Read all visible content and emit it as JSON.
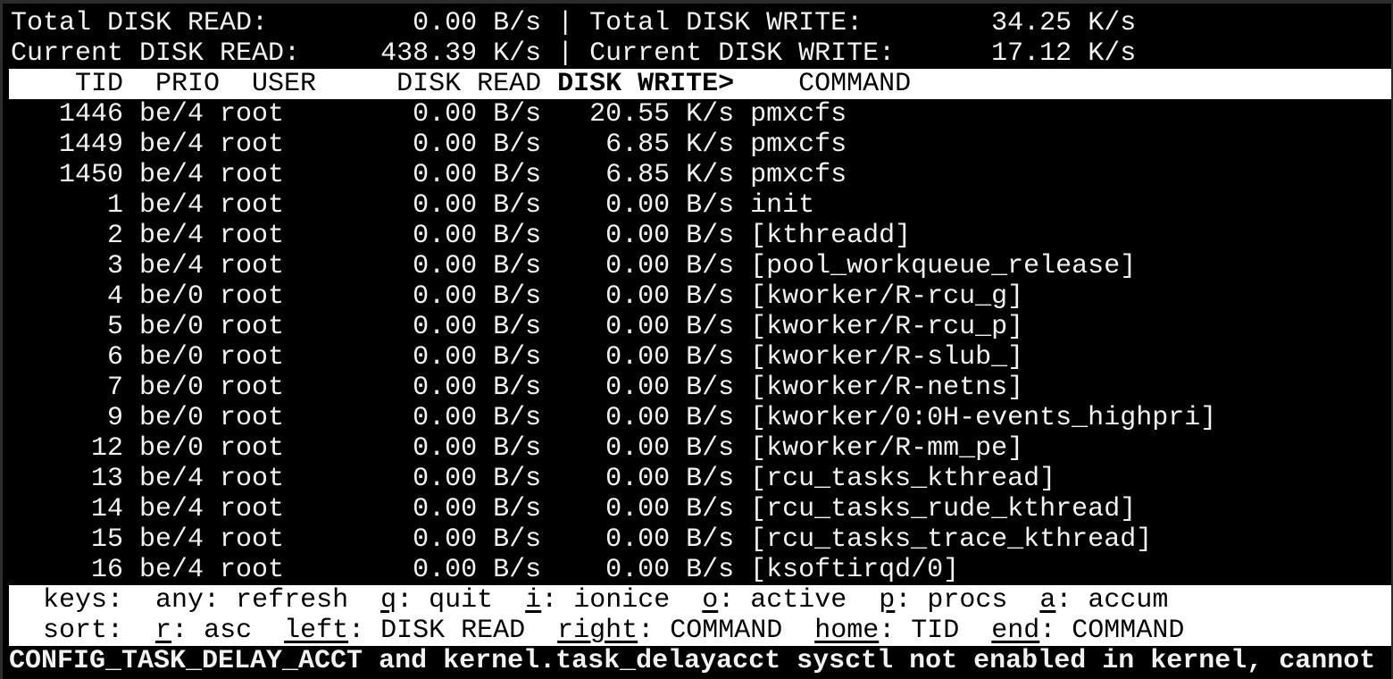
{
  "summary": {
    "total_read_label": "Total DISK READ:",
    "total_read": "0.00 B/s",
    "total_write_label": "Total DISK WRITE:",
    "total_write": "34.25 K/s",
    "current_read_label": "Current DISK READ:",
    "current_read": "438.39 K/s",
    "current_write_label": "Current DISK WRITE:",
    "current_write": "17.12 K/s",
    "separator": "|"
  },
  "columns": {
    "tid": "TID",
    "prio": "PRIO",
    "user": "USER",
    "disk_read": "DISK READ",
    "disk_write": "DISK WRITE>",
    "command": "COMMAND"
  },
  "rows": [
    {
      "tid": "1446",
      "prio": "be/4",
      "user": "root",
      "read": "0.00 B/s",
      "write": "20.55 K/s",
      "command": "pmxcfs"
    },
    {
      "tid": "1449",
      "prio": "be/4",
      "user": "root",
      "read": "0.00 B/s",
      "write": "6.85 K/s",
      "command": "pmxcfs"
    },
    {
      "tid": "1450",
      "prio": "be/4",
      "user": "root",
      "read": "0.00 B/s",
      "write": "6.85 K/s",
      "command": "pmxcfs"
    },
    {
      "tid": "1",
      "prio": "be/4",
      "user": "root",
      "read": "0.00 B/s",
      "write": "0.00 B/s",
      "command": "init"
    },
    {
      "tid": "2",
      "prio": "be/4",
      "user": "root",
      "read": "0.00 B/s",
      "write": "0.00 B/s",
      "command": "[kthreadd]"
    },
    {
      "tid": "3",
      "prio": "be/4",
      "user": "root",
      "read": "0.00 B/s",
      "write": "0.00 B/s",
      "command": "[pool_workqueue_release]"
    },
    {
      "tid": "4",
      "prio": "be/0",
      "user": "root",
      "read": "0.00 B/s",
      "write": "0.00 B/s",
      "command": "[kworker/R-rcu_g]"
    },
    {
      "tid": "5",
      "prio": "be/0",
      "user": "root",
      "read": "0.00 B/s",
      "write": "0.00 B/s",
      "command": "[kworker/R-rcu_p]"
    },
    {
      "tid": "6",
      "prio": "be/0",
      "user": "root",
      "read": "0.00 B/s",
      "write": "0.00 B/s",
      "command": "[kworker/R-slub_]"
    },
    {
      "tid": "7",
      "prio": "be/0",
      "user": "root",
      "read": "0.00 B/s",
      "write": "0.00 B/s",
      "command": "[kworker/R-netns]"
    },
    {
      "tid": "9",
      "prio": "be/0",
      "user": "root",
      "read": "0.00 B/s",
      "write": "0.00 B/s",
      "command": "[kworker/0:0H-events_highpri]"
    },
    {
      "tid": "12",
      "prio": "be/0",
      "user": "root",
      "read": "0.00 B/s",
      "write": "0.00 B/s",
      "command": "[kworker/R-mm_pe]"
    },
    {
      "tid": "13",
      "prio": "be/4",
      "user": "root",
      "read": "0.00 B/s",
      "write": "0.00 B/s",
      "command": "[rcu_tasks_kthread]"
    },
    {
      "tid": "14",
      "prio": "be/4",
      "user": "root",
      "read": "0.00 B/s",
      "write": "0.00 B/s",
      "command": "[rcu_tasks_rude_kthread]"
    },
    {
      "tid": "15",
      "prio": "be/4",
      "user": "root",
      "read": "0.00 B/s",
      "write": "0.00 B/s",
      "command": "[rcu_tasks_trace_kthread]"
    },
    {
      "tid": "16",
      "prio": "be/4",
      "user": "root",
      "read": "0.00 B/s",
      "write": "0.00 B/s",
      "command": "[ksoftirqd/0]"
    }
  ],
  "footer": {
    "keys_label": "keys:",
    "keys": [
      {
        "key": "",
        "desc": "any: refresh"
      },
      {
        "key": "q",
        "desc": ": quit"
      },
      {
        "key": "i",
        "desc": ": ionice"
      },
      {
        "key": "o",
        "desc": ": active"
      },
      {
        "key": "p",
        "desc": ": procs"
      },
      {
        "key": "a",
        "desc": ": accum"
      }
    ],
    "sort_label": "sort:",
    "sort": [
      {
        "key": "r",
        "desc": ": asc"
      },
      {
        "key": "left",
        "desc": ": DISK READ"
      },
      {
        "key": "right",
        "desc": ": COMMAND"
      },
      {
        "key": "home",
        "desc": ": TID"
      },
      {
        "key": "end",
        "desc": ": COMMAND"
      }
    ]
  },
  "warning": "CONFIG_TASK_DELAY_ACCT and kernel.task_delayacct sysctl not enabled in kernel, cannot"
}
